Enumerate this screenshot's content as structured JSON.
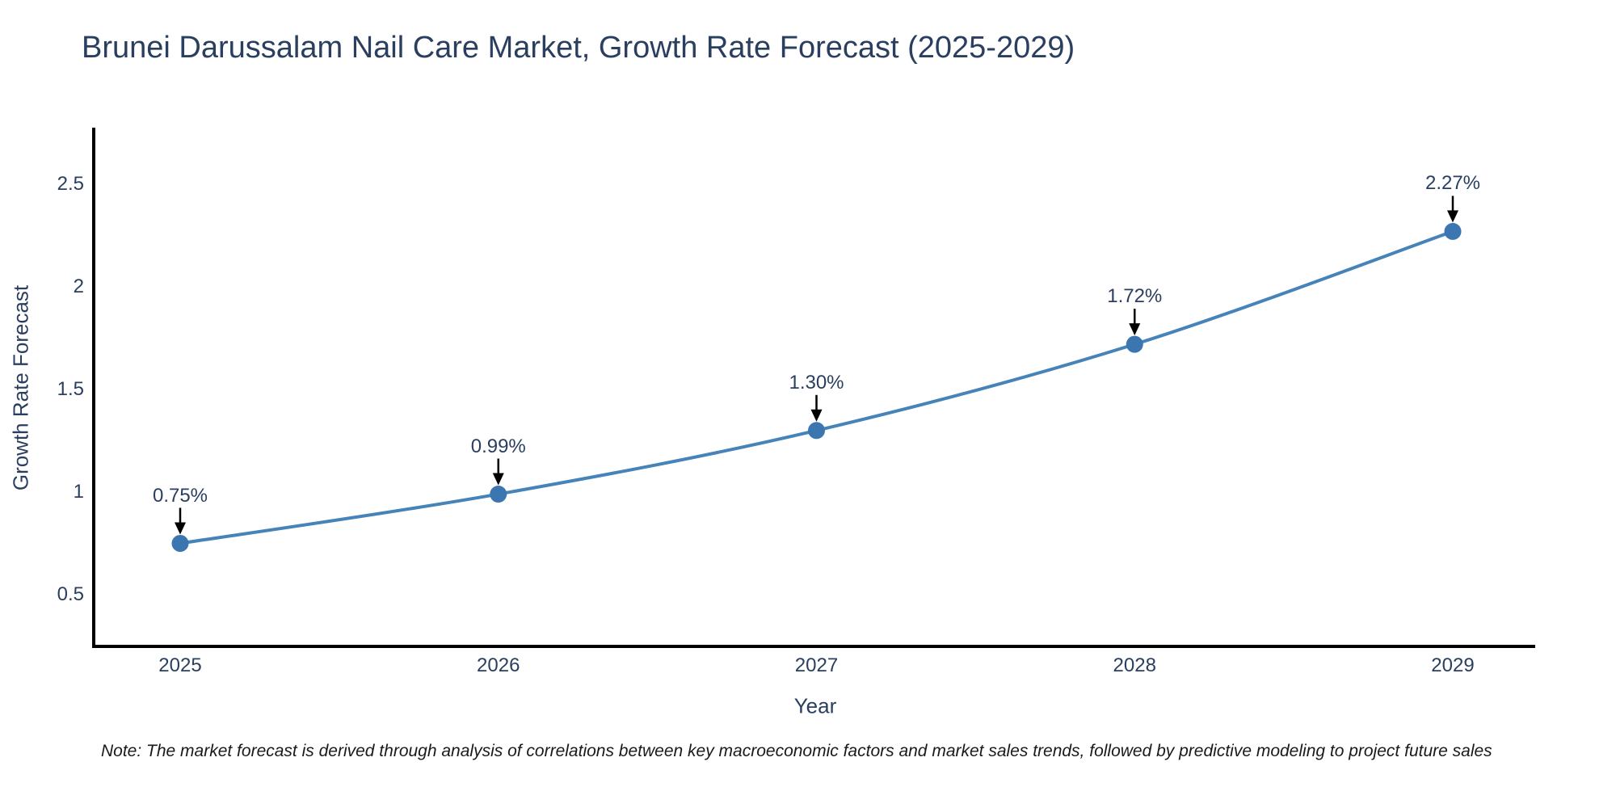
{
  "title": "Brunei Darussalam Nail Care Market, Growth Rate Forecast (2025-2029)",
  "note": "Note: The market forecast is derived through analysis of correlations between key macroeconomic factors and market sales trends, followed by predictive modeling to project future sales",
  "chart_data": {
    "type": "line",
    "title": "Brunei Darussalam Nail Care Market, Growth Rate Forecast (2025-2029)",
    "x": [
      2025,
      2026,
      2027,
      2028,
      2029
    ],
    "series": [
      {
        "name": "Growth Rate Forecast",
        "values": [
          0.75,
          0.99,
          1.3,
          1.72,
          2.27
        ]
      }
    ],
    "point_labels": [
      "0.75%",
      "0.99%",
      "1.30%",
      "1.72%",
      "2.27%"
    ],
    "xlabel": "Year",
    "ylabel": "Growth Rate Forecast",
    "xtick_labels": [
      "2025",
      "2026",
      "2027",
      "2028",
      "2029"
    ],
    "yticks": [
      0.5,
      1,
      1.5,
      2,
      2.5
    ],
    "ytick_labels": [
      "0.5",
      "1",
      "1.5",
      "2",
      "2.5"
    ],
    "ylim": [
      0.25,
      2.77
    ],
    "grid": false,
    "legend": false,
    "annotation_arrows": true
  },
  "colors": {
    "line": "#4583b8",
    "marker": "#3b76b0",
    "axis": "#000000",
    "arrow": "#000000",
    "text": "#2a3f5f",
    "note_text": "#1a1a1a",
    "background": "#ffffff"
  }
}
